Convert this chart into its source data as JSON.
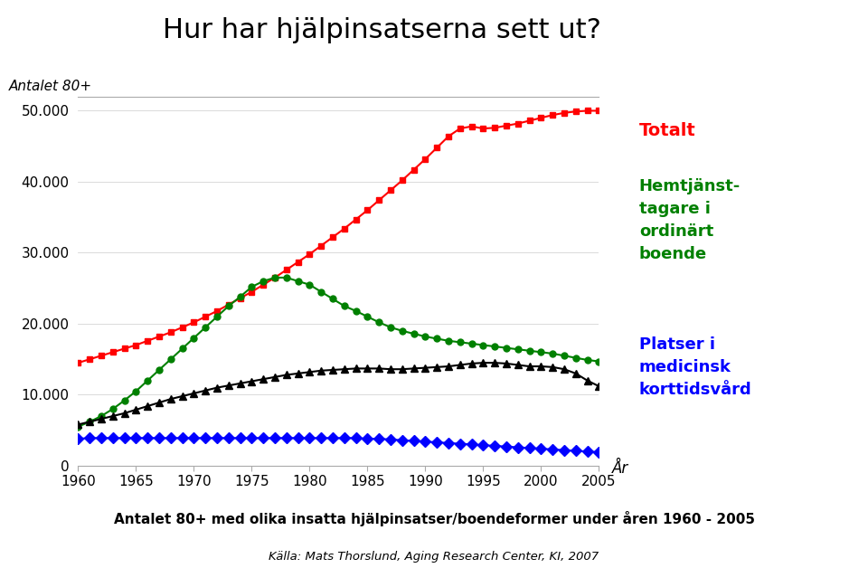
{
  "title": "Hur har hjälpinsatserna sett ut?",
  "ylabel": "Antalet 80+",
  "xlabel": "År",
  "subtitle": "Antalet 80+ med olika insatta hjälpinsatser/boendeformer under åren 1960 - 2005",
  "source": "Källa: Mats Thorslund, Aging Research Center, KI, 2007",
  "background_color": "#ffffff",
  "ylim": [
    0,
    52000
  ],
  "xlim": [
    1960,
    2005
  ],
  "yticks": [
    0,
    10000,
    20000,
    30000,
    40000,
    50000
  ],
  "ytick_labels": [
    "0",
    "10.000",
    "20.000",
    "30.000",
    "40.000",
    "50.000"
  ],
  "xticks": [
    1960,
    1965,
    1970,
    1975,
    1980,
    1985,
    1990,
    1995,
    2000,
    2005
  ],
  "red_years": [
    1960,
    1961,
    1962,
    1963,
    1964,
    1965,
    1966,
    1967,
    1968,
    1969,
    1970,
    1971,
    1972,
    1973,
    1974,
    1975,
    1976,
    1977,
    1978,
    1979,
    1980,
    1981,
    1982,
    1983,
    1984,
    1985,
    1986,
    1987,
    1988,
    1989,
    1990,
    1991,
    1992,
    1993,
    1994,
    1995,
    1996,
    1997,
    1998,
    1999,
    2000,
    2001,
    2002,
    2003,
    2004,
    2005
  ],
  "red_values": [
    14500,
    15000,
    15500,
    16000,
    16500,
    17000,
    17600,
    18200,
    18800,
    19500,
    20200,
    21000,
    21800,
    22700,
    23600,
    24500,
    25500,
    26500,
    27600,
    28700,
    29800,
    31000,
    32200,
    33400,
    34700,
    36000,
    37400,
    38800,
    40200,
    41700,
    43200,
    44800,
    46400,
    47500,
    47800,
    47500,
    47600,
    47900,
    48200,
    48600,
    49000,
    49400,
    49700,
    49900,
    50000,
    50000
  ],
  "green_years": [
    1960,
    1961,
    1962,
    1963,
    1964,
    1965,
    1966,
    1967,
    1968,
    1969,
    1970,
    1971,
    1972,
    1973,
    1974,
    1975,
    1976,
    1977,
    1978,
    1979,
    1980,
    1981,
    1982,
    1983,
    1984,
    1985,
    1986,
    1987,
    1988,
    1989,
    1990,
    1991,
    1992,
    1993,
    1994,
    1995,
    1996,
    1997,
    1998,
    1999,
    2000,
    2001,
    2002,
    2003,
    2004,
    2005
  ],
  "green_values": [
    5500,
    6200,
    7000,
    8000,
    9200,
    10500,
    12000,
    13500,
    15000,
    16500,
    18000,
    19500,
    21000,
    22500,
    23800,
    25200,
    26000,
    26500,
    26500,
    26000,
    25500,
    24500,
    23500,
    22500,
    21800,
    21000,
    20200,
    19500,
    19000,
    18600,
    18200,
    17900,
    17600,
    17400,
    17200,
    17000,
    16800,
    16600,
    16400,
    16200,
    16000,
    15800,
    15500,
    15200,
    14900,
    14700
  ],
  "black_years": [
    1960,
    1961,
    1962,
    1963,
    1964,
    1965,
    1966,
    1967,
    1968,
    1969,
    1970,
    1971,
    1972,
    1973,
    1974,
    1975,
    1976,
    1977,
    1978,
    1979,
    1980,
    1981,
    1982,
    1983,
    1984,
    1985,
    1986,
    1987,
    1988,
    1989,
    1990,
    1991,
    1992,
    1993,
    1994,
    1995,
    1996,
    1997,
    1998,
    1999,
    2000,
    2001,
    2002,
    2003,
    2004,
    2005
  ],
  "black_values": [
    5800,
    6200,
    6600,
    7000,
    7400,
    7900,
    8400,
    8900,
    9400,
    9800,
    10200,
    10600,
    11000,
    11300,
    11600,
    11900,
    12200,
    12500,
    12800,
    13000,
    13200,
    13400,
    13500,
    13600,
    13700,
    13700,
    13700,
    13600,
    13600,
    13700,
    13800,
    13900,
    14000,
    14200,
    14400,
    14500,
    14500,
    14400,
    14200,
    14000,
    14000,
    13900,
    13600,
    13000,
    12000,
    11200
  ],
  "blue_years": [
    1960,
    1961,
    1962,
    1963,
    1964,
    1965,
    1966,
    1967,
    1968,
    1969,
    1970,
    1971,
    1972,
    1973,
    1974,
    1975,
    1976,
    1977,
    1978,
    1979,
    1980,
    1981,
    1982,
    1983,
    1984,
    1985,
    1986,
    1987,
    1988,
    1989,
    1990,
    1991,
    1992,
    1993,
    1994,
    1995,
    1996,
    1997,
    1998,
    1999,
    2000,
    2001,
    2002,
    2003,
    2004,
    2005
  ],
  "blue_values": [
    3800,
    3900,
    3900,
    3900,
    3900,
    3900,
    3900,
    3900,
    3900,
    3900,
    3900,
    3900,
    3900,
    3900,
    3900,
    3900,
    3900,
    3900,
    3900,
    3900,
    3900,
    3900,
    3900,
    3900,
    3900,
    3800,
    3800,
    3700,
    3600,
    3500,
    3400,
    3300,
    3200,
    3100,
    3000,
    2900,
    2800,
    2700,
    2600,
    2500,
    2400,
    2300,
    2200,
    2100,
    2000,
    1900
  ],
  "red_color": "#ff0000",
  "green_color": "#008000",
  "black_color": "#000000",
  "blue_color": "#0000ff",
  "legend_label_totalt": "Totalt",
  "legend_label_hemtjanst": "Hemtjänst-\ntagare i\nordinärt\nboende",
  "legend_label_platser": "Platser i\nmedicinsk\nkorttidsvård"
}
